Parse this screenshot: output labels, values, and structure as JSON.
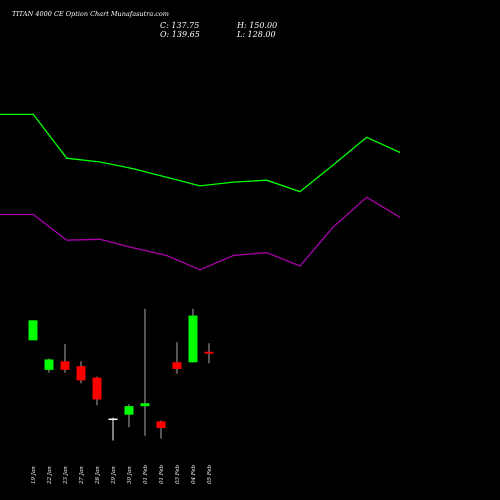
{
  "title": "TITAN 4000 CE Option Chart Munafasutra.com",
  "ohlc": {
    "close": "C: 137.75",
    "open": "O: 139.65",
    "high": "H: 150.00",
    "low": "L: 128.00"
  },
  "chart_data": {
    "type": "candlestick",
    "title": "TITAN 4000 CE Option Chart Munafasutra.com",
    "categories": [
      "19 Jan",
      "22 Jan",
      "23 Jan",
      "27 Jan",
      "28 Jan",
      "29 Jan",
      "30 Jan",
      "01 Feb",
      "01 Feb",
      "03 Feb",
      "04 Feb",
      "05 Feb"
    ],
    "candles": [
      {
        "date": "19 Jan",
        "open": 105,
        "close": 126,
        "high": 126,
        "low": 105,
        "color": "#00ff00"
      },
      {
        "date": "22 Jan",
        "open": 74,
        "close": 85,
        "high": 86,
        "low": 71,
        "color": "#00ff00"
      },
      {
        "date": "23 Jan",
        "open": 83,
        "close": 74,
        "high": 101,
        "low": 71,
        "color": "#ff0000"
      },
      {
        "date": "27 Jan",
        "open": 78,
        "close": 63,
        "high": 83,
        "low": 60,
        "color": "#ff0000"
      },
      {
        "date": "28 Jan",
        "open": 66,
        "close": 43,
        "high": 67,
        "low": 37,
        "color": "#ff0000"
      },
      {
        "date": "29 Jan",
        "open": 23,
        "close": 23,
        "high": 24,
        "low": 0,
        "color": "#ffffff"
      },
      {
        "date": "30 Jan",
        "open": 27,
        "close": 36,
        "high": 38,
        "low": 14,
        "color": "#00ff00"
      },
      {
        "date": "01 Feb",
        "open": 36,
        "close": 39,
        "high": 138,
        "low": 5,
        "color": "#00ff00"
      },
      {
        "date": "01 Feb",
        "open": 20,
        "close": 13,
        "high": 21,
        "low": 2,
        "color": "#ff0000"
      },
      {
        "date": "03 Feb",
        "open": 82,
        "close": 75,
        "high": 103,
        "low": 70,
        "color": "#ff0000"
      },
      {
        "date": "04 Feb",
        "open": 82,
        "close": 131,
        "high": 138,
        "low": 82,
        "color": "#00ff00"
      },
      {
        "date": "05 Feb",
        "open": 93,
        "close": 91,
        "high": 102,
        "low": 81,
        "color": "#ff0000"
      }
    ],
    "series": [
      {
        "color": "#00ff00",
        "x": [
          0,
          2,
          4,
          6,
          8,
          10,
          12,
          14,
          16,
          18,
          20,
          22,
          24
        ],
        "values": [
          342,
          342,
          296,
          292,
          285,
          276,
          267,
          271,
          273,
          261,
          289,
          318,
          302
        ]
      },
      {
        "color": "#aa00aa",
        "x": [
          0,
          2,
          4,
          6,
          8,
          10,
          12,
          14,
          16,
          18,
          20,
          22,
          24
        ],
        "values": [
          237,
          237,
          210,
          211,
          202,
          194,
          179,
          194,
          197,
          183,
          224,
          255,
          234
        ]
      }
    ],
    "xlim": [
      0,
      24
    ],
    "ylim": [
      -10,
      420
    ],
    "grid": false,
    "background": "#000000"
  }
}
